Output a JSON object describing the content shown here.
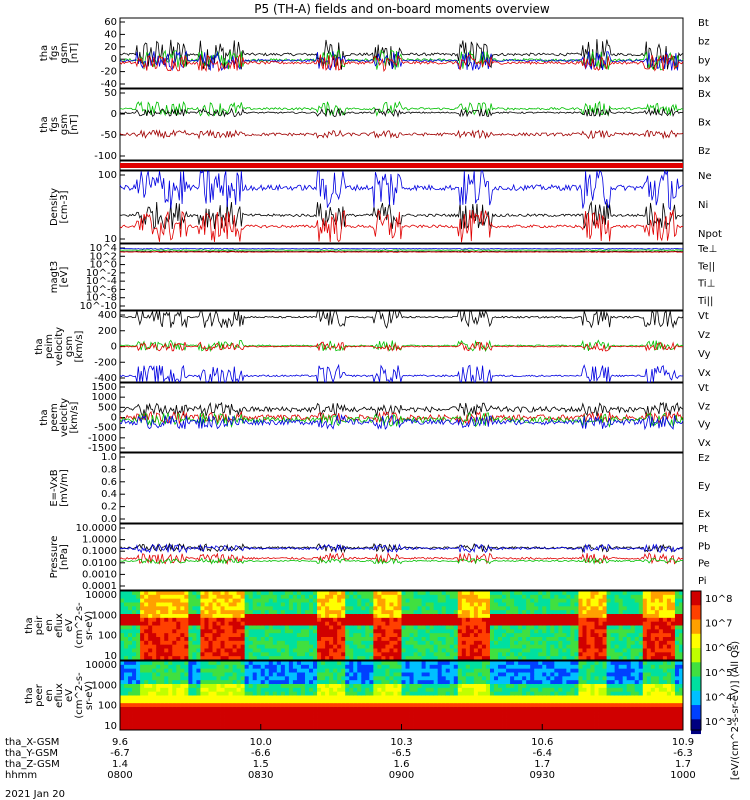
{
  "title": "P5 (TH-A) fields and on-board moments overview",
  "date_label": "2021 Jan 20",
  "ephemeris": {
    "rows": [
      {
        "name": "tha_X-GSM",
        "values": [
          "9.6",
          "10.0",
          "10.3",
          "10.6",
          "10.9"
        ]
      },
      {
        "name": "tha_Y-GSM",
        "values": [
          "-6.7",
          "-6.6",
          "-6.5",
          "-6.4",
          "-6.3"
        ]
      },
      {
        "name": "tha_Z-GSM",
        "values": [
          "1.4",
          "1.5",
          "1.6",
          "1.7",
          "1.7"
        ]
      },
      {
        "name": "hhmm",
        "values": [
          "0800",
          "0830",
          "0900",
          "0930",
          "1000"
        ]
      }
    ]
  },
  "colorbar": {
    "label": "[eV/(cm^2-s-sr-eV)] (All Qs)",
    "ticks": [
      "10^8",
      "10^7",
      "10^6",
      "10^5",
      "10^4",
      "10^3"
    ]
  },
  "chart_data": {
    "type": "line",
    "x_range": [
      "0800",
      "1000"
    ],
    "panels": [
      {
        "id": "fgs-gsm",
        "ylabel": [
          "tha",
          "fgs",
          "gsm",
          "[nT]"
        ],
        "ylim": [
          -40,
          60
        ],
        "yticks": [
          "60",
          "40",
          "20",
          "0",
          "-20",
          "-40"
        ],
        "legend": [
          {
            "name": "Bt",
            "color": "#000000"
          },
          {
            "name": "bz",
            "color": "#e00000"
          },
          {
            "name": "by",
            "color": "#00c000"
          },
          {
            "name": "bx",
            "color": "#0000e0"
          }
        ]
      },
      {
        "id": "fgs-gsm-log",
        "ylabel": [
          "tha",
          "fgs",
          "gsm",
          "[nT]"
        ],
        "ylim": [
          -120,
          60
        ],
        "yticks": [
          "50",
          "0",
          "-50",
          "-100"
        ],
        "legend": [
          {
            "name": "Bx",
            "color": "#00c000"
          },
          {
            "name": "Bx",
            "color": "#000000"
          },
          {
            "name": "Bz",
            "color": "#a00000"
          }
        ]
      },
      {
        "id": "mode-bar",
        "ylabel": [],
        "yticks": [],
        "legend": []
      },
      {
        "id": "density",
        "ylabel": [
          "Density",
          "[cm-3]"
        ],
        "yticks": [
          "100",
          "10"
        ],
        "legend": [
          {
            "name": "Ne",
            "color": "#e00000"
          },
          {
            "name": "Ni",
            "color": "#000000"
          },
          {
            "name": "Npot",
            "color": "#0000e0"
          }
        ]
      },
      {
        "id": "temperature",
        "ylabel": [
          "magt3",
          "[eV]"
        ],
        "yticks": [
          "10^4",
          "10^2",
          "10^0",
          "10^-2",
          "10^-4",
          "10^-6",
          "10^-8",
          "10^-10"
        ],
        "legend": [
          {
            "name": "Te⊥",
            "color": "#e00000"
          },
          {
            "name": "Te||",
            "color": "#000000"
          },
          {
            "name": "Ti⊥",
            "color": "#a000a0"
          },
          {
            "name": "Ti||",
            "color": "#00c000"
          }
        ]
      },
      {
        "id": "peim-velocity",
        "ylabel": [
          "tha",
          "peim",
          "velocity",
          "gsm",
          "[km/s]"
        ],
        "ylim": [
          -400,
          400
        ],
        "yticks": [
          "400",
          "200",
          "0",
          "-200",
          "-400"
        ],
        "legend": [
          {
            "name": "Vt",
            "color": "#000000"
          },
          {
            "name": "Vz",
            "color": "#e00000"
          },
          {
            "name": "Vy",
            "color": "#00c000"
          },
          {
            "name": "Vx",
            "color": "#0000e0"
          }
        ]
      },
      {
        "id": "peem-velocity",
        "ylabel": [
          "tha",
          "peem",
          "velocity",
          "[km/s]"
        ],
        "ylim": [
          -1500,
          1500
        ],
        "yticks": [
          "1500",
          "1000",
          "500",
          "0",
          "-500",
          "-1000",
          "-1500"
        ],
        "legend": [
          {
            "name": "Vt",
            "color": "#000000"
          },
          {
            "name": "Vz",
            "color": "#e00000"
          },
          {
            "name": "Vy",
            "color": "#00c000"
          },
          {
            "name": "Vx",
            "color": "#0000e0"
          }
        ]
      },
      {
        "id": "efield",
        "ylabel": [
          "E=-VxB",
          "[mV/m]"
        ],
        "ylim": [
          0,
          1
        ],
        "yticks": [
          "1.0",
          "0.8",
          "0.6",
          "0.4",
          "0.2",
          "0.0"
        ],
        "legend": [
          {
            "name": "Ez",
            "color": "#e00000"
          },
          {
            "name": "Ey",
            "color": "#00c000"
          },
          {
            "name": "Ex",
            "color": "#0000e0"
          }
        ]
      },
      {
        "id": "pressure",
        "ylabel": [
          "Pressure",
          "[nPa]"
        ],
        "yticks": [
          "10.0000",
          "1.0000",
          "0.1000",
          "0.0100",
          "0.0010",
          "0.0001"
        ],
        "legend": [
          {
            "name": "Pt",
            "color": "#000000"
          },
          {
            "name": "Pb",
            "color": "#e00000"
          },
          {
            "name": "Pe",
            "color": "#00c000"
          },
          {
            "name": "Pi",
            "color": "#0000e0"
          }
        ]
      },
      {
        "id": "peir-spectrogram",
        "ylabel": [
          "tha",
          "peir",
          "en",
          "eflux",
          "eV",
          "(cm^2-s-",
          "sr-eV)"
        ],
        "yticks": [
          "10000",
          "1000",
          "100",
          "10"
        ],
        "legend": []
      },
      {
        "id": "peer-spectrogram",
        "ylabel": [
          "tha",
          "peer",
          "en",
          "eflux",
          "eV",
          "(cm^2-s-",
          "sr-eV)"
        ],
        "yticks": [
          "10000",
          "1000",
          "100",
          "10"
        ],
        "legend": []
      }
    ]
  }
}
